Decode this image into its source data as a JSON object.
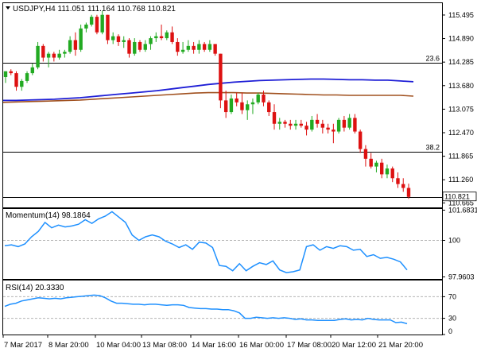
{
  "chart_data": [
    {
      "type": "candlestick",
      "title": "USDJPY,H4  111.051 111.164 110.768 110.821",
      "y_ticks": [
        "115.495",
        "114.890",
        "114.285",
        "113.680",
        "113.075",
        "112.470",
        "111.865",
        "111.260",
        "110.665"
      ],
      "ylim": [
        110.55,
        115.8
      ],
      "price_label": "110.821",
      "hlines": [
        {
          "label": "23.6",
          "value": 114.26
        },
        {
          "label": "38.2",
          "value": 111.98
        },
        {
          "label": "",
          "value": 110.82
        }
      ],
      "colors": {
        "bull": "#22aa22",
        "bear": "#dd1111",
        "ma_fast": "#1e1ed6",
        "ma_slow": "#a0501e",
        "grid": "#b4b4b4",
        "line": "#000000"
      },
      "candles": [
        [
          113.9,
          114.05,
          113.75,
          114.05
        ],
        [
          114.05,
          114.1,
          113.95,
          114.0
        ],
        [
          114.0,
          114.05,
          113.55,
          113.65
        ],
        [
          113.65,
          113.85,
          113.55,
          113.8
        ],
        [
          113.8,
          114.05,
          113.75,
          114.0
        ],
        [
          114.0,
          114.25,
          113.95,
          114.15
        ],
        [
          114.15,
          114.8,
          114.1,
          114.7
        ],
        [
          114.7,
          114.75,
          114.3,
          114.4
        ],
        [
          114.4,
          114.55,
          114.15,
          114.5
        ],
        [
          114.5,
          114.55,
          114.3,
          114.4
        ],
        [
          114.4,
          114.6,
          114.35,
          114.5
        ],
        [
          114.5,
          114.6,
          114.4,
          114.55
        ],
        [
          114.55,
          114.95,
          114.5,
          114.85
        ],
        [
          114.85,
          115.05,
          114.45,
          114.6
        ],
        [
          114.6,
          115.25,
          114.55,
          115.15
        ],
        [
          115.15,
          115.3,
          115.05,
          115.25
        ],
        [
          115.25,
          115.5,
          115.2,
          115.45
        ],
        [
          115.45,
          115.5,
          115.0,
          115.05
        ],
        [
          115.05,
          115.6,
          115.0,
          115.5
        ],
        [
          115.5,
          115.5,
          114.75,
          114.85
        ],
        [
          114.85,
          115.05,
          114.75,
          114.95
        ],
        [
          114.95,
          115.0,
          114.7,
          114.8
        ],
        [
          114.8,
          114.95,
          114.65,
          114.85
        ],
        [
          114.85,
          114.9,
          114.4,
          114.5
        ],
        [
          114.5,
          114.9,
          114.45,
          114.8
        ],
        [
          114.8,
          114.85,
          114.55,
          114.6
        ],
        [
          114.6,
          114.85,
          114.55,
          114.75
        ],
        [
          114.75,
          114.95,
          114.6,
          114.9
        ],
        [
          114.9,
          115.05,
          114.8,
          114.95
        ],
        [
          114.95,
          115.25,
          114.85,
          114.9
        ],
        [
          114.9,
          115.1,
          114.85,
          115.05
        ],
        [
          115.05,
          115.2,
          114.75,
          114.8
        ],
        [
          114.8,
          114.9,
          114.45,
          114.55
        ],
        [
          114.55,
          114.8,
          114.5,
          114.6
        ],
        [
          114.6,
          114.85,
          114.55,
          114.7
        ],
        [
          114.7,
          114.8,
          114.5,
          114.6
        ],
        [
          114.6,
          114.85,
          114.5,
          114.75
        ],
        [
          114.75,
          114.8,
          114.55,
          114.6
        ],
        [
          114.6,
          114.85,
          114.55,
          114.75
        ],
        [
          114.75,
          114.75,
          114.45,
          114.5
        ],
        [
          114.5,
          114.5,
          113.1,
          113.3
        ],
        [
          113.3,
          113.55,
          112.85,
          113.0
        ],
        [
          113.0,
          113.45,
          112.95,
          113.35
        ],
        [
          113.35,
          113.5,
          113.15,
          113.25
        ],
        [
          113.25,
          113.5,
          112.95,
          113.05
        ],
        [
          113.05,
          113.3,
          112.8,
          113.2
        ],
        [
          113.2,
          113.35,
          112.95,
          113.25
        ],
        [
          113.25,
          113.5,
          113.2,
          113.45
        ],
        [
          113.45,
          113.55,
          113.15,
          113.25
        ],
        [
          113.25,
          113.3,
          112.9,
          113.0
        ],
        [
          113.0,
          113.2,
          112.55,
          112.7
        ],
        [
          112.7,
          112.85,
          112.55,
          112.75
        ],
        [
          112.75,
          112.8,
          112.6,
          112.7
        ],
        [
          112.7,
          112.8,
          112.55,
          112.65
        ],
        [
          112.65,
          112.8,
          112.55,
          112.7
        ],
        [
          112.7,
          112.8,
          112.6,
          112.65
        ],
        [
          112.65,
          112.75,
          112.4,
          112.55
        ],
        [
          112.55,
          112.9,
          112.5,
          112.8
        ],
        [
          112.8,
          112.95,
          112.6,
          112.7
        ],
        [
          112.7,
          112.8,
          112.45,
          112.6
        ],
        [
          112.6,
          112.7,
          112.45,
          112.55
        ],
        [
          112.55,
          112.7,
          112.2,
          112.5
        ],
        [
          112.5,
          112.85,
          112.45,
          112.8
        ],
        [
          112.8,
          112.9,
          112.5,
          112.6
        ],
        [
          112.6,
          112.95,
          112.55,
          112.85
        ],
        [
          112.85,
          112.95,
          112.45,
          112.5
        ],
        [
          112.5,
          112.55,
          111.95,
          112.05
        ],
        [
          112.05,
          112.15,
          111.6,
          111.8
        ],
        [
          111.8,
          111.95,
          111.55,
          111.6
        ],
        [
          111.6,
          111.75,
          111.45,
          111.7
        ],
        [
          111.7,
          111.8,
          111.3,
          111.4
        ],
        [
          111.4,
          111.65,
          111.3,
          111.55
        ],
        [
          111.55,
          111.6,
          111.2,
          111.3
        ],
        [
          111.3,
          111.45,
          111.05,
          111.15
        ],
        [
          111.15,
          111.3,
          110.95,
          111.05
        ],
        [
          111.05,
          111.16,
          110.77,
          110.82
        ]
      ],
      "ma_fast": [
        113.3,
        113.3,
        113.31,
        113.32,
        113.33,
        113.35,
        113.37,
        113.4,
        113.43,
        113.46,
        113.49,
        113.52,
        113.55,
        113.59,
        113.63,
        113.67,
        113.71,
        113.74,
        113.77,
        113.79,
        113.81,
        113.82,
        113.83,
        113.84,
        113.85,
        113.85,
        113.84,
        113.83,
        113.83,
        113.82,
        113.82,
        113.8,
        113.78
      ],
      "ma_slow": [
        113.25,
        113.26,
        113.27,
        113.28,
        113.29,
        113.3,
        113.31,
        113.33,
        113.35,
        113.37,
        113.39,
        113.41,
        113.43,
        113.45,
        113.47,
        113.49,
        113.5,
        113.5,
        113.5,
        113.49,
        113.49,
        113.48,
        113.47,
        113.46,
        113.45,
        113.44,
        113.44,
        113.43,
        113.43,
        113.43,
        113.43,
        113.43,
        113.41
      ],
      "x_ticks": [
        "7 Mar 2017",
        "8 Mar 20:00",
        "10 Mar 04:00",
        "13 Mar 08:00",
        "14 Mar 16:00",
        "16 Mar 00:00",
        "17 Mar 08:00",
        "20 Mar 12:00",
        "21 Mar 20:00"
      ]
    },
    {
      "type": "line",
      "title": "Momentum(14) 98.1864",
      "y_ticks": [
        "101.6831",
        "100",
        "97.9603"
      ],
      "level_value": 100,
      "ylim": [
        97.85,
        101.75
      ],
      "values": [
        99.7,
        99.75,
        99.65,
        99.8,
        100.2,
        100.5,
        101.0,
        100.7,
        100.85,
        100.75,
        100.8,
        100.9,
        101.15,
        100.95,
        101.2,
        101.35,
        101.6,
        101.3,
        101.0,
        100.3,
        100.0,
        100.2,
        100.3,
        100.2,
        99.95,
        99.8,
        99.6,
        99.75,
        99.5,
        99.9,
        99.85,
        99.6,
        98.6,
        98.55,
        98.3,
        98.7,
        98.3,
        98.55,
        98.75,
        98.65,
        98.85,
        98.35,
        98.2,
        98.25,
        98.35,
        99.65,
        99.75,
        99.45,
        99.65,
        99.55,
        99.7,
        99.65,
        99.45,
        99.5,
        99.1,
        99.2,
        99.0,
        99.05,
        98.95,
        98.8,
        98.35
      ]
    },
    {
      "type": "line",
      "title": "RSI(14) 20.3330",
      "y_ticks": [
        "70",
        "30",
        "0"
      ],
      "level_values": [
        70,
        30
      ],
      "ylim": [
        0,
        100
      ],
      "values": [
        52,
        56,
        58,
        62,
        64,
        66,
        68,
        67,
        66,
        67,
        66,
        68,
        69,
        70,
        71,
        72,
        73,
        72,
        68,
        62,
        58,
        58,
        57,
        56,
        56,
        55,
        56,
        56,
        55,
        54,
        55,
        55,
        54,
        50,
        49,
        48,
        48,
        47,
        47,
        46,
        46,
        44,
        40,
        30,
        30,
        32,
        31,
        30,
        31,
        30,
        31,
        30,
        28,
        29,
        27,
        27,
        26,
        26,
        26,
        26,
        28,
        29,
        27,
        28,
        27,
        30,
        28,
        27,
        27,
        27,
        22,
        23,
        20
      ]
    }
  ]
}
